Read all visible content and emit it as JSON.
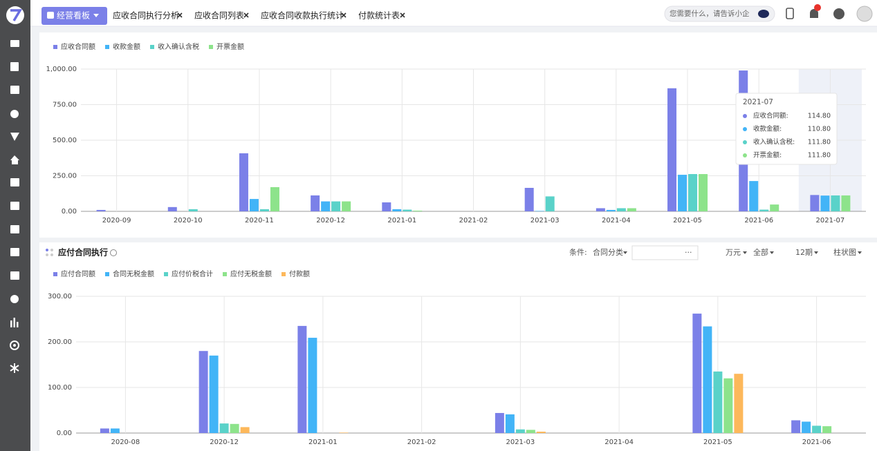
{
  "header": {
    "tabs": [
      "经营看板",
      "应收合同执行分析",
      "应收合同列表",
      "应收合同收款执行统计",
      "付款统计表"
    ],
    "search_placeholder": "您需要什么，请告诉小企"
  },
  "chart_data": [
    {
      "type": "bar",
      "categories": [
        "2020-09",
        "2020-10",
        "2020-11",
        "2020-12",
        "2021-01",
        "2021-02",
        "2021-03",
        "2021-04",
        "2021-05",
        "2021-06",
        "2021-07"
      ],
      "series": [
        {
          "name": "应收合同额",
          "color": "#7b80e8",
          "values": [
            10,
            30,
            408,
            112,
            63,
            0,
            165,
            22,
            865,
            990,
            114.8
          ]
        },
        {
          "name": "收款金额",
          "color": "#42b4f7",
          "values": [
            0,
            0,
            87,
            70,
            15,
            0,
            3,
            10,
            257,
            213,
            110.8
          ]
        },
        {
          "name": "收入确认含税",
          "color": "#5ad2c9",
          "values": [
            0,
            15,
            15,
            70,
            12,
            0,
            105,
            22,
            262,
            12,
            111.8
          ]
        },
        {
          "name": "开票金额",
          "color": "#8de38b",
          "values": [
            0,
            0,
            170,
            70,
            5,
            0,
            0,
            22,
            262,
            48,
            111.8
          ]
        }
      ],
      "ylim": [
        0,
        1000
      ],
      "yticks": [
        {
          "value": 0,
          "label": "0.00"
        },
        {
          "value": 250,
          "label": "250.00"
        },
        {
          "value": 500,
          "label": "500.00"
        },
        {
          "value": 750,
          "label": "750.00"
        },
        {
          "value": 1000,
          "label": "1,000.00"
        }
      ],
      "grid": true
    },
    {
      "type": "bar",
      "title": "应付合同执行",
      "categories": [
        "2020-08",
        "2020-12",
        "2021-01",
        "2021-02",
        "2021-03",
        "2021-04",
        "2021-05",
        "2021-06"
      ],
      "series": [
        {
          "name": "应付合同额",
          "color": "#7b80e8",
          "values": [
            10,
            180,
            235,
            0,
            44,
            0,
            262,
            28
          ]
        },
        {
          "name": "合同无税金额",
          "color": "#42b4f7",
          "values": [
            10,
            170,
            209,
            0,
            41,
            0,
            234,
            25
          ]
        },
        {
          "name": "应付价税合计",
          "color": "#5ad2c9",
          "values": [
            0,
            21,
            0,
            0,
            8,
            0,
            135,
            16
          ]
        },
        {
          "name": "应付无税金额",
          "color": "#8de38b",
          "values": [
            0,
            20,
            0,
            0,
            7,
            0,
            120,
            15
          ]
        },
        {
          "name": "付款额",
          "color": "#fdb85b",
          "values": [
            0,
            13,
            1,
            0,
            3,
            0,
            130,
            0
          ]
        }
      ],
      "ylim": [
        0,
        300
      ],
      "yticks": [
        {
          "value": 0,
          "label": "0.00"
        },
        {
          "value": 100,
          "label": "100.00"
        },
        {
          "value": 200,
          "label": "200.00"
        },
        {
          "value": 300,
          "label": "300.00"
        }
      ],
      "grid": true
    }
  ],
  "tooltip": {
    "category": "2021-07",
    "rows": [
      {
        "label": "应收合同额:",
        "value": "114.80"
      },
      {
        "label": "收款金额:",
        "value": "110.80"
      },
      {
        "label": "收入确认含税:",
        "value": "111.80"
      },
      {
        "label": "开票金额:",
        "value": "111.80"
      }
    ]
  },
  "panel2": {
    "condition_label": "条件:",
    "condition": "合同分类",
    "more": "···",
    "unit": "万元",
    "scope": "全部",
    "periods": "12期",
    "chart_kind": "柱状图"
  }
}
